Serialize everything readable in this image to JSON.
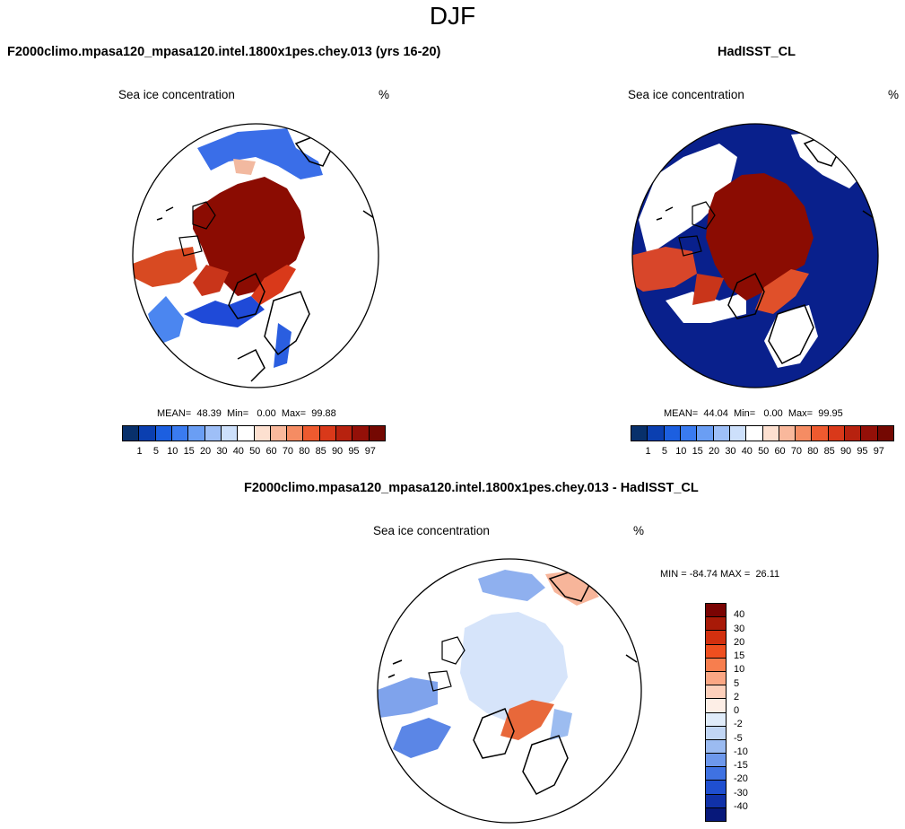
{
  "figure": {
    "title": "DJF"
  },
  "panels": [
    {
      "id": "model",
      "header": "F2000climo.mpasa120_mpasa120.intel.1800x1pes.chey.013 (yrs 16-20)",
      "variable": "Sea ice concentration",
      "units": "%",
      "stats": {
        "mean_label": "MEAN=",
        "mean": "48.39",
        "min_label": "Min=",
        "min": "0.00",
        "max_label": "Max=",
        "max": "99.88"
      },
      "colorbar": {
        "ticks": [
          "1",
          "5",
          "10",
          "15",
          "20",
          "30",
          "40",
          "50",
          "60",
          "70",
          "80",
          "85",
          "90",
          "95",
          "97"
        ],
        "colors": [
          "#08306b",
          "#0b3fb0",
          "#1c5fe0",
          "#3a7bf0",
          "#6a9ef4",
          "#9ebff7",
          "#cde0fb",
          "#ffffff",
          "#fde0d0",
          "#f9b89c",
          "#f58c63",
          "#ee5a2f",
          "#d9391a",
          "#b7220f",
          "#941008",
          "#740802"
        ]
      }
    },
    {
      "id": "obs",
      "header": "HadISST_CL",
      "variable": "Sea ice concentration",
      "units": "%",
      "stats": {
        "mean_label": "MEAN=",
        "mean": "44.04",
        "min_label": "Min=",
        "min": "0.00",
        "max_label": "Max=",
        "max": "99.95"
      },
      "colorbar": {
        "ticks": [
          "1",
          "5",
          "10",
          "15",
          "20",
          "30",
          "40",
          "50",
          "60",
          "70",
          "80",
          "85",
          "90",
          "95",
          "97"
        ],
        "colors": [
          "#08306b",
          "#0b3fb0",
          "#1c5fe0",
          "#3a7bf0",
          "#6a9ef4",
          "#9ebff7",
          "#cde0fb",
          "#ffffff",
          "#fde0d0",
          "#f9b89c",
          "#f58c63",
          "#ee5a2f",
          "#d9391a",
          "#b7220f",
          "#941008",
          "#740802"
        ]
      }
    },
    {
      "id": "diff",
      "header": "F2000climo.mpasa120_mpasa120.intel.1800x1pes.chey.013 - HadISST_CL",
      "variable": "Sea ice concentration",
      "units": "%",
      "stats": {
        "min_label": "MIN =",
        "min": "-84.74",
        "max_label": "MAX =",
        "max": "26.11"
      },
      "colorbar": {
        "ticks": [
          "40",
          "30",
          "20",
          "15",
          "10",
          "5",
          "2",
          "0",
          "-2",
          "-5",
          "-10",
          "-15",
          "-20",
          "-30",
          "-40"
        ],
        "colors": [
          "#7a0403",
          "#a81a08",
          "#d2300f",
          "#ef4f1f",
          "#f77e4e",
          "#fba784",
          "#fdd0bb",
          "#fdeee6",
          "#e0ecfa",
          "#c1d6f5",
          "#9bbbf1",
          "#6d98ec",
          "#3f72e2",
          "#1f4fd0",
          "#1031a8",
          "#07187a"
        ]
      }
    }
  ]
}
